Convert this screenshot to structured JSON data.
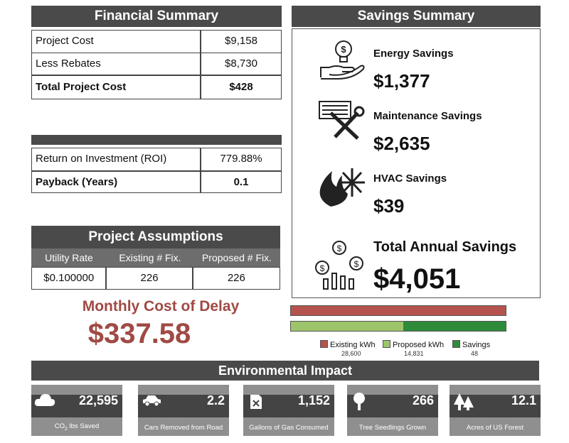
{
  "financial": {
    "title": "Financial Summary",
    "rows": [
      {
        "label": "Project Cost",
        "value": "$9,158"
      },
      {
        "label": "Less Rebates",
        "value": "$8,730"
      },
      {
        "label": "Total Project Cost",
        "value": "$428"
      }
    ]
  },
  "roi": {
    "title": "",
    "rows": [
      {
        "label": "Return on Investment (ROI)",
        "value": "779.88%"
      },
      {
        "label": "Payback (Years)",
        "value": "0.1"
      }
    ]
  },
  "assumptions": {
    "title": "Project Assumptions",
    "headers": [
      "Utility Rate",
      "Existing # Fix.",
      "Proposed # Fix."
    ],
    "values": [
      "$0.100000",
      "226",
      "226"
    ]
  },
  "delay": {
    "label": "Monthly Cost of Delay",
    "value": "$337.58"
  },
  "savings": {
    "title": "Savings Summary",
    "items": [
      {
        "label": "Energy Savings",
        "value": "$1,377",
        "icon": "lightbulb-hand-icon"
      },
      {
        "label": "Maintenance Savings",
        "value": "$2,635",
        "icon": "tools-icon"
      },
      {
        "label": "HVAC Savings",
        "value": "$39",
        "icon": "fire-snow-icon"
      },
      {
        "label": "Total Annual Savings",
        "value": "$4,051",
        "icon": "money-chart-icon"
      }
    ]
  },
  "kwh": {
    "existing": 28600,
    "proposed": 14831,
    "savings": 48,
    "legend": [
      {
        "label": "Existing kWh",
        "value": "28,600",
        "color": "#b5534f"
      },
      {
        "label": "Proposed kWh",
        "value": "14,831",
        "color": "#9dc46a"
      },
      {
        "label": "Savings",
        "value": "48",
        "color": "#2e8b3a"
      }
    ]
  },
  "environment": {
    "title": "Environmental Impact",
    "cards": [
      {
        "value": "22,595",
        "label_pre": "CO",
        "label_sub": "2",
        "label_post": " lbs Saved",
        "icon": "cloud-icon"
      },
      {
        "value": "2.2",
        "label": "Cars Removed from Road",
        "icon": "car-icon"
      },
      {
        "value": "1,152",
        "label": "Gallons of Gas Consumed",
        "icon": "gas-can-icon"
      },
      {
        "value": "266",
        "label": "Tree Seedlings Grown",
        "icon": "tree-icon"
      },
      {
        "value": "12.1",
        "label": "Acres of US Forest",
        "icon": "forest-icon"
      }
    ]
  }
}
